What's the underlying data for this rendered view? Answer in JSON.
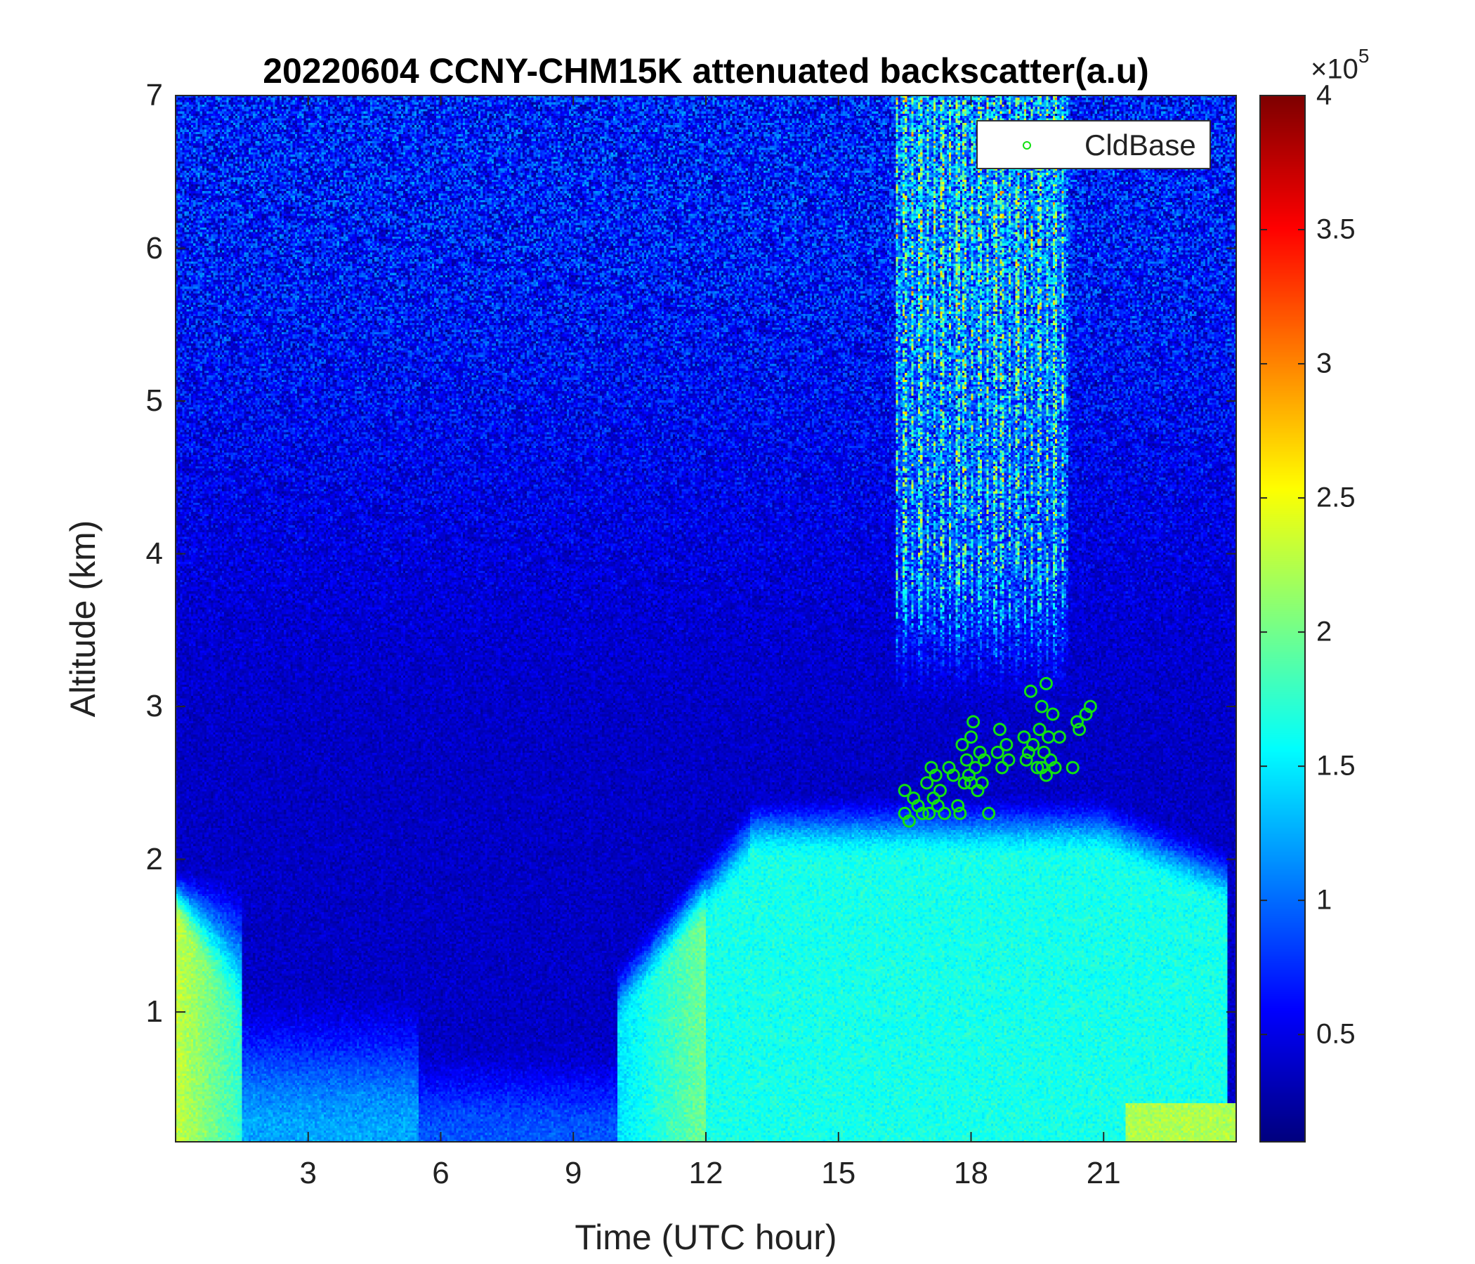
{
  "chart_data": {
    "type": "heatmap",
    "title": "20220604 CCNY-CHM15K attenuated backscatter(a.u)",
    "xlabel": "Time (UTC hour)",
    "ylabel": "Altitude (km)",
    "xlim": [
      0,
      24
    ],
    "ylim": [
      0.15,
      7
    ],
    "xticks": [
      3,
      6,
      9,
      12,
      15,
      18,
      21
    ],
    "yticks": [
      1,
      2,
      3,
      4,
      5,
      6,
      7
    ],
    "colorbar": {
      "colormap": "jet",
      "clim": [
        0.1,
        4
      ],
      "ticks": [
        0.5,
        1,
        1.5,
        2,
        2.5,
        3,
        3.5,
        4
      ],
      "tick_labels": [
        "0.5",
        "1",
        "1.5",
        "2",
        "2.5",
        "3",
        "3.5",
        "4"
      ],
      "exponent": "×10",
      "exponent_power": "5"
    },
    "legend": {
      "label": "CldBase",
      "placement": "top-right",
      "marker_color": "#12e012"
    },
    "cloud_base": [
      [
        16.5,
        2.3
      ],
      [
        16.5,
        2.45
      ],
      [
        16.6,
        2.25
      ],
      [
        16.7,
        2.4
      ],
      [
        16.8,
        2.35
      ],
      [
        16.9,
        2.3
      ],
      [
        17.0,
        2.5
      ],
      [
        17.05,
        2.3
      ],
      [
        17.1,
        2.6
      ],
      [
        17.15,
        2.4
      ],
      [
        17.2,
        2.55
      ],
      [
        17.25,
        2.35
      ],
      [
        17.3,
        2.45
      ],
      [
        17.4,
        2.3
      ],
      [
        17.5,
        2.6
      ],
      [
        17.6,
        2.55
      ],
      [
        17.7,
        2.35
      ],
      [
        17.75,
        2.3
      ],
      [
        17.8,
        2.75
      ],
      [
        17.85,
        2.5
      ],
      [
        17.9,
        2.65
      ],
      [
        17.95,
        2.55
      ],
      [
        18.0,
        2.8
      ],
      [
        18.0,
        2.5
      ],
      [
        18.05,
        2.9
      ],
      [
        18.1,
        2.6
      ],
      [
        18.15,
        2.45
      ],
      [
        18.2,
        2.7
      ],
      [
        18.25,
        2.5
      ],
      [
        18.3,
        2.65
      ],
      [
        18.4,
        2.3
      ],
      [
        18.6,
        2.7
      ],
      [
        18.65,
        2.85
      ],
      [
        18.7,
        2.6
      ],
      [
        18.8,
        2.75
      ],
      [
        18.85,
        2.65
      ],
      [
        19.2,
        2.8
      ],
      [
        19.25,
        2.65
      ],
      [
        19.3,
        2.7
      ],
      [
        19.35,
        3.1
      ],
      [
        19.4,
        2.75
      ],
      [
        19.5,
        2.6
      ],
      [
        19.55,
        2.85
      ],
      [
        19.6,
        3.0
      ],
      [
        19.6,
        2.6
      ],
      [
        19.65,
        2.7
      ],
      [
        19.7,
        3.15
      ],
      [
        19.7,
        2.55
      ],
      [
        19.75,
        2.8
      ],
      [
        19.8,
        2.65
      ],
      [
        19.85,
        2.95
      ],
      [
        19.9,
        2.6
      ],
      [
        20.0,
        2.8
      ],
      [
        20.3,
        2.6
      ],
      [
        20.4,
        2.9
      ],
      [
        20.45,
        2.85
      ],
      [
        20.6,
        2.95
      ],
      [
        20.7,
        3.0
      ]
    ]
  }
}
